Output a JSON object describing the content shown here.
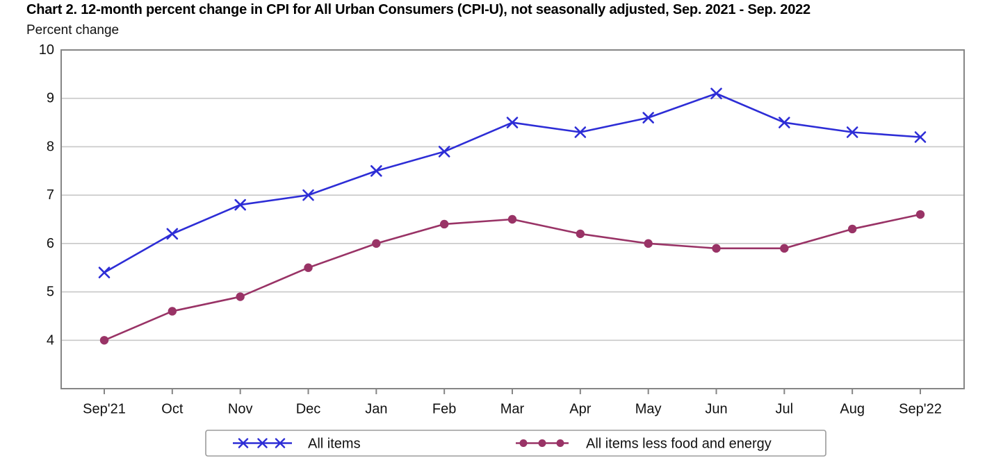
{
  "header": {
    "title": "Chart 2. 12-month percent change in CPI for All Urban Consumers (CPI-U), not seasonally adjusted, Sep. 2021 - Sep. 2022",
    "y_axis_label": "Percent change"
  },
  "chart_data": {
    "type": "line",
    "title": "Chart 2. 12-month percent change in CPI for All Urban Consumers (CPI-U), not seasonally adjusted, Sep. 2021 - Sep. 2022",
    "ylabel": "Percent change",
    "xlabel": "",
    "categories": [
      "Sep'21",
      "Oct",
      "Nov",
      "Dec",
      "Jan",
      "Feb",
      "Mar",
      "Apr",
      "May",
      "Jun",
      "Jul",
      "Aug",
      "Sep'22"
    ],
    "series": [
      {
        "name": "All items",
        "marker": "x",
        "color": "#2d2dd6",
        "values": [
          5.4,
          6.2,
          6.8,
          7.0,
          7.5,
          7.9,
          8.5,
          8.3,
          8.6,
          9.1,
          8.5,
          8.3,
          8.2
        ]
      },
      {
        "name": "All items less food and energy",
        "marker": "circle",
        "color": "#993366",
        "values": [
          4.0,
          4.6,
          4.9,
          5.5,
          6.0,
          6.4,
          6.5,
          6.2,
          6.0,
          5.9,
          5.9,
          6.3,
          6.6
        ]
      }
    ],
    "ylim": [
      3,
      10
    ],
    "yticks": [
      4,
      5,
      6,
      7,
      8,
      9,
      10
    ],
    "grid": true,
    "legend_position": "bottom"
  },
  "colors": {
    "all_items_line": "#2d2dd6",
    "core_line": "#993366",
    "gridline": "#c8c8c8",
    "plot_border": "#858585",
    "text": "#111111",
    "legend_border": "#9b9b9b",
    "background": "#ffffff"
  }
}
